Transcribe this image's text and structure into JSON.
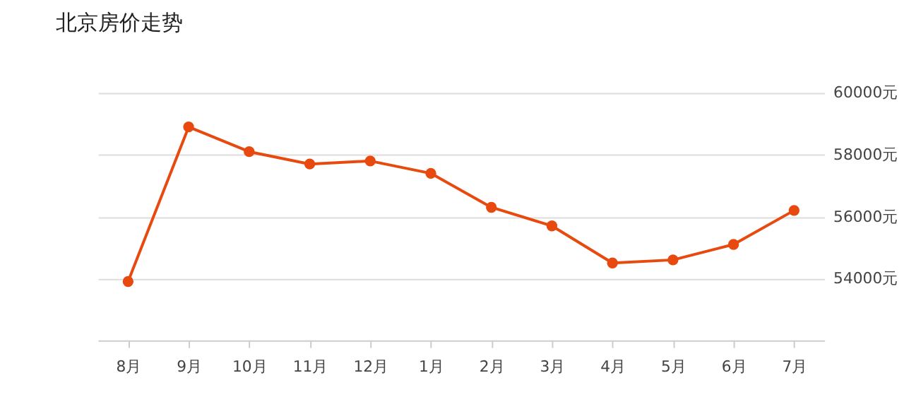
{
  "chart_data": {
    "type": "line",
    "title": "北京房价走势",
    "categories": [
      "8月",
      "9月",
      "10月",
      "11月",
      "12月",
      "1月",
      "2月",
      "3月",
      "4月",
      "5月",
      "6月",
      "7月"
    ],
    "series": [
      {
        "color": "#e8490f",
        "values": [
          53900,
          58900,
          58100,
          57700,
          57800,
          57400,
          56300,
          55700,
          54500,
          54600,
          55100,
          56200
        ]
      }
    ],
    "ylim": [
      52000,
      60000
    ],
    "yticks": [
      {
        "value": 54000,
        "label": "54000元"
      },
      {
        "value": 56000,
        "label": "56000元"
      },
      {
        "value": 58000,
        "label": "58000元"
      },
      {
        "value": 60000,
        "label": "60000元"
      }
    ],
    "grid": "y",
    "marker": "circle",
    "line_style": "solid",
    "legend": false
  }
}
